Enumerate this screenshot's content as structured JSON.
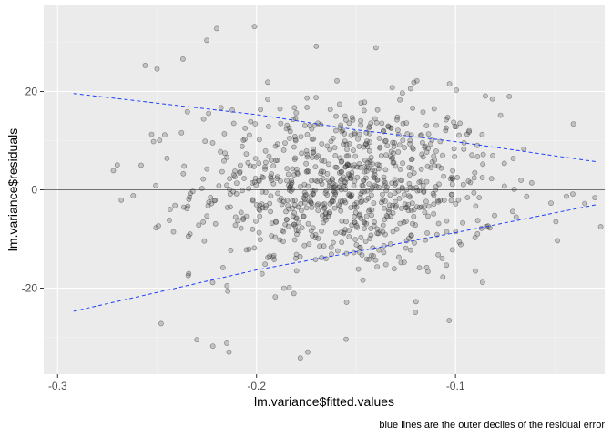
{
  "chart_data": {
    "type": "scatter",
    "xlabel": "lm.variance$fitted.values",
    "ylabel": "lm.variance$residuals",
    "caption": "blue lines are the outer deciles of the residual error",
    "xlim": [
      -0.307,
      -0.025
    ],
    "ylim": [
      -37.5,
      37.5
    ],
    "x_ticks": [
      -0.3,
      -0.2,
      -0.1
    ],
    "x_tick_labels": [
      "-0.3",
      "-0.2",
      "-0.1"
    ],
    "y_ticks": [
      -20,
      0,
      20
    ],
    "y_tick_labels": [
      "-20",
      "0",
      "20"
    ],
    "grid": true,
    "hline": 0,
    "n_points": 900,
    "points_note": "approximately 900 semi-transparent grey points, densest near x=-0.15, y=0",
    "sample_points": [
      {
        "x": -0.201,
        "y": 33.2
      },
      {
        "x": -0.22,
        "y": 32.8
      },
      {
        "x": -0.225,
        "y": 30.4
      },
      {
        "x": -0.17,
        "y": 29.2
      },
      {
        "x": -0.14,
        "y": 28.9
      },
      {
        "x": -0.256,
        "y": 25.3
      },
      {
        "x": -0.25,
        "y": 24.6
      },
      {
        "x": -0.237,
        "y": 26.6
      },
      {
        "x": -0.085,
        "y": 19.1
      },
      {
        "x": -0.272,
        "y": 3.9
      },
      {
        "x": -0.258,
        "y": 5.0
      },
      {
        "x": -0.268,
        "y": -2.1
      },
      {
        "x": -0.262,
        "y": -1.2
      },
      {
        "x": -0.03,
        "y": -1.6
      },
      {
        "x": -0.035,
        "y": -2.8
      },
      {
        "x": -0.027,
        "y": -7.5
      },
      {
        "x": -0.052,
        "y": -2.7
      },
      {
        "x": -0.248,
        "y": -27.2
      },
      {
        "x": -0.23,
        "y": -30.5
      },
      {
        "x": -0.222,
        "y": -31.8
      },
      {
        "x": -0.215,
        "y": -31.2
      },
      {
        "x": -0.155,
        "y": -30.4
      },
      {
        "x": -0.178,
        "y": -34.2
      },
      {
        "x": -0.09,
        "y": -16.5
      }
    ],
    "reference_lines": [
      {
        "name": "upper decile",
        "color": "#1f3fff",
        "style": "dashed",
        "x": [
          -0.292,
          -0.2,
          -0.15,
          -0.1,
          -0.029
        ],
        "y": [
          19.6,
          15.3,
          12.2,
          9.8,
          5.7
        ]
      },
      {
        "name": "lower decile",
        "color": "#1f3fff",
        "style": "dashed",
        "x": [
          -0.292,
          -0.2,
          -0.15,
          -0.1,
          -0.029
        ],
        "y": [
          -24.7,
          -16.3,
          -12.6,
          -8.7,
          -3.0
        ]
      }
    ],
    "colors": {
      "panel": "#ebebeb",
      "grid_major": "#ffffff",
      "grid_minor": "#f5f5f5",
      "points": "#333333",
      "zero_line": "#707070",
      "decile_lines": "#1f3fff"
    }
  }
}
